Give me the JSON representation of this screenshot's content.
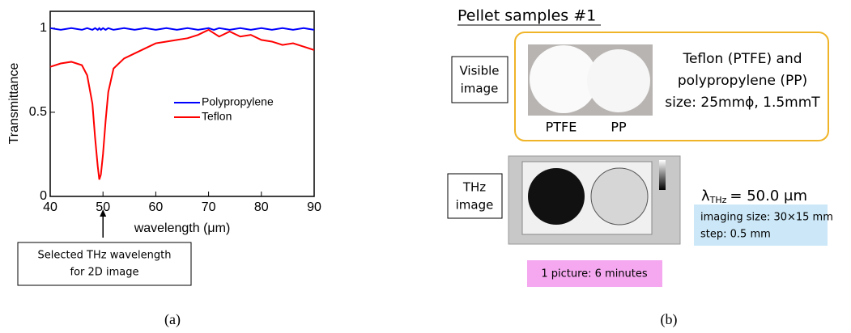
{
  "chart_data": {
    "type": "line",
    "xlabel": "wavelength (μm)",
    "ylabel": "Transmittance",
    "x": [
      40,
      42,
      44,
      46,
      47,
      48,
      48.5,
      49,
      49.3,
      49.6,
      50,
      50.5,
      51,
      52,
      54,
      56,
      58,
      60,
      62,
      64,
      66,
      68,
      70,
      71,
      72,
      74,
      76,
      78,
      80,
      82,
      84,
      86,
      88,
      90
    ],
    "series": [
      {
        "name": "Polypropylene",
        "color": "#0000ff",
        "values": [
          1.0,
          0.99,
          1.0,
          0.99,
          1.0,
          0.99,
          1.0,
          0.99,
          1.0,
          0.99,
          1.0,
          0.99,
          1.0,
          0.99,
          1.0,
          0.99,
          1.0,
          0.99,
          1.0,
          0.99,
          1.0,
          0.99,
          1.0,
          0.99,
          1.0,
          0.99,
          1.0,
          0.99,
          1.0,
          0.99,
          1.0,
          0.99,
          1.0,
          0.99
        ]
      },
      {
        "name": "Teflon",
        "color": "#ff0000",
        "values": [
          0.77,
          0.79,
          0.8,
          0.78,
          0.72,
          0.55,
          0.35,
          0.18,
          0.1,
          0.13,
          0.25,
          0.45,
          0.62,
          0.76,
          0.82,
          0.85,
          0.88,
          0.91,
          0.92,
          0.93,
          0.94,
          0.96,
          0.99,
          0.97,
          0.95,
          0.98,
          0.95,
          0.96,
          0.93,
          0.92,
          0.9,
          0.91,
          0.89,
          0.87
        ]
      }
    ],
    "xlim": [
      40,
      90
    ],
    "ylim": [
      0,
      1.1
    ],
    "xticks": [
      40,
      50,
      60,
      70,
      80,
      90
    ],
    "yticks": [
      0,
      0.5,
      1
    ],
    "legend": "right",
    "annotation": {
      "lines": [
        "Selected THz wavelength",
        "for 2D image"
      ],
      "x": 50
    },
    "panel_label": "(a)"
  },
  "panel_b": {
    "title": "Pellet samples #1",
    "visible_label": [
      "Visible",
      "image"
    ],
    "photo_captions": [
      "PTFE",
      "PP"
    ],
    "description": [
      "Teflon (PTFE) and",
      "polypropylene (PP)",
      "size: 25mmϕ, 1.5mmT"
    ],
    "thz_label": [
      "THz",
      "image"
    ],
    "wavelength": {
      "symbol": "λ",
      "subscript": "THz",
      "value": "= 50.0 μm"
    },
    "imaging_info": [
      "imaging size: 30×15 mm",
      "step: 0.5 mm"
    ],
    "time_note": "1 picture: 6 minutes",
    "panel_label": "(b)"
  }
}
